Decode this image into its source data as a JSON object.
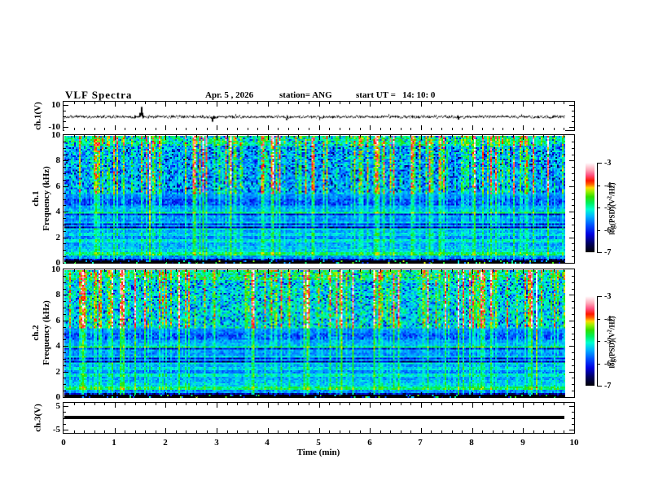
{
  "header": {
    "title": "VLF Spectra",
    "date": "Apr. 5 , 2026",
    "station": "station= ANG",
    "start_ut": "start UT =   14: 10: 0"
  },
  "axes": {
    "xlabel": "Time (min)",
    "xlim": [
      0,
      10
    ],
    "xticks": [
      0,
      1,
      2,
      3,
      4,
      5,
      6,
      7,
      8,
      9,
      10
    ],
    "x_minor_step": 0.2,
    "data_end_min": 9.8
  },
  "colorbar": {
    "ticks": [
      -3,
      -4,
      -5,
      -6,
      -7
    ],
    "label_prefix": "log(PSD)(V",
    "label_sup": "2",
    "label_suffix": "/Hz)"
  },
  "colormap": {
    "stops": [
      [
        0.0,
        "#000004"
      ],
      [
        0.1,
        "#000060"
      ],
      [
        0.2,
        "#0000e0"
      ],
      [
        0.3,
        "#0050ff"
      ],
      [
        0.4,
        "#00b4ff"
      ],
      [
        0.48,
        "#00ffd0"
      ],
      [
        0.55,
        "#00f060"
      ],
      [
        0.62,
        "#30e000"
      ],
      [
        0.68,
        "#a0f000"
      ],
      [
        0.72,
        "#ffd800"
      ],
      [
        0.76,
        "#ff6000"
      ],
      [
        0.8,
        "#ff1800"
      ],
      [
        0.86,
        "#ff5080"
      ],
      [
        0.92,
        "#ffa8b8"
      ],
      [
        1.0,
        "#ffffff"
      ]
    ],
    "vmin": -7,
    "vmax": -3
  },
  "chart_data": [
    {
      "id": "p1",
      "type": "line",
      "name": "ch1-waveform",
      "ylabel": "ch.1(V)",
      "ylim": [
        -13,
        13
      ],
      "yticks": [
        10,
        -10
      ],
      "yminors": [
        5,
        0,
        -5
      ],
      "noise_amp": 1.1,
      "seed": 7,
      "spikes": [
        {
          "t": 1.5,
          "v": 9.0
        },
        {
          "t": 2.9,
          "v": -4.5
        },
        {
          "t": 4.35,
          "v": -3.0
        },
        {
          "t": 7.7,
          "v": -2.6
        }
      ]
    },
    {
      "id": "p2",
      "type": "heatmap",
      "name": "ch1-spectrogram",
      "ylabel_line1": "ch.1",
      "ylabel_line2": "Frequency (kHz)",
      "ylim": [
        0,
        10
      ],
      "yticks": [
        0,
        2,
        4,
        6,
        8,
        10
      ],
      "y_minor_step": 0.5,
      "seed": 11,
      "upper_base": -5.45,
      "bands": {
        "top": -5.0,
        "upper": -5.45,
        "mid": -5.85,
        "low": -6.15,
        "vlow": -6.45,
        "floor": -6.95
      },
      "hlines": [
        {
          "f": 5.45,
          "a": -5.6
        },
        {
          "f": 5.15,
          "a": -5.7
        },
        {
          "f": 4.45,
          "a": -5.5
        },
        {
          "f": 4.2,
          "a": -5.4
        },
        {
          "f": 3.95,
          "a": -4.9
        },
        {
          "f": 3.7,
          "a": -5.5
        },
        {
          "f": 3.45,
          "a": -5.6
        },
        {
          "f": 3.2,
          "a": -5.3
        },
        {
          "f": 2.95,
          "a": -5.5
        },
        {
          "f": 2.7,
          "a": -5.2
        },
        {
          "f": 2.45,
          "a": -5.5
        },
        {
          "f": 2.2,
          "a": -5.3
        },
        {
          "f": 1.95,
          "a": -5.6
        },
        {
          "f": 1.7,
          "a": -5.2
        },
        {
          "f": 1.45,
          "a": -5.5
        },
        {
          "f": 1.2,
          "a": -5.4
        },
        {
          "f": 0.95,
          "a": -5.3
        },
        {
          "f": 0.7,
          "a": -4.9
        },
        {
          "f": 0.45,
          "a": -5.6
        }
      ]
    },
    {
      "id": "p3",
      "type": "heatmap",
      "name": "ch2-spectrogram",
      "ylabel_line1": "ch.2",
      "ylabel_line2": "Frequency (kHz)",
      "ylim": [
        0,
        10
      ],
      "yticks": [
        0,
        2,
        4,
        6,
        8,
        10
      ],
      "y_minor_step": 0.5,
      "seed": 23,
      "upper_base": -5.2,
      "bands": {
        "top": -4.9,
        "upper": -5.2,
        "mid": -5.8,
        "low": -6.15,
        "vlow": -6.45,
        "floor": -6.95
      },
      "hlines": [
        {
          "f": 5.45,
          "a": -5.6
        },
        {
          "f": 5.15,
          "a": -5.7
        },
        {
          "f": 4.45,
          "a": -5.5
        },
        {
          "f": 4.2,
          "a": -5.4
        },
        {
          "f": 3.95,
          "a": -4.9
        },
        {
          "f": 3.7,
          "a": -5.5
        },
        {
          "f": 3.45,
          "a": -5.6
        },
        {
          "f": 3.2,
          "a": -5.3
        },
        {
          "f": 2.95,
          "a": -5.5
        },
        {
          "f": 2.7,
          "a": -5.2
        },
        {
          "f": 2.45,
          "a": -5.5
        },
        {
          "f": 2.2,
          "a": -5.3
        },
        {
          "f": 1.95,
          "a": -5.6
        },
        {
          "f": 1.7,
          "a": -5.2
        },
        {
          "f": 1.45,
          "a": -5.5
        },
        {
          "f": 1.2,
          "a": -5.4
        },
        {
          "f": 0.95,
          "a": -5.3
        },
        {
          "f": 0.7,
          "a": -4.9
        },
        {
          "f": 0.45,
          "a": -5.6
        }
      ]
    },
    {
      "id": "p4",
      "type": "line",
      "name": "ch3-flatline",
      "ylabel": "ch.3(V)",
      "ylim": [
        -6.5,
        6.5
      ],
      "yticks": [
        5,
        -5
      ],
      "yminors": [
        2.5,
        0,
        -2.5
      ],
      "flat_value": 0.15,
      "line_thickness_px": 4
    }
  ]
}
